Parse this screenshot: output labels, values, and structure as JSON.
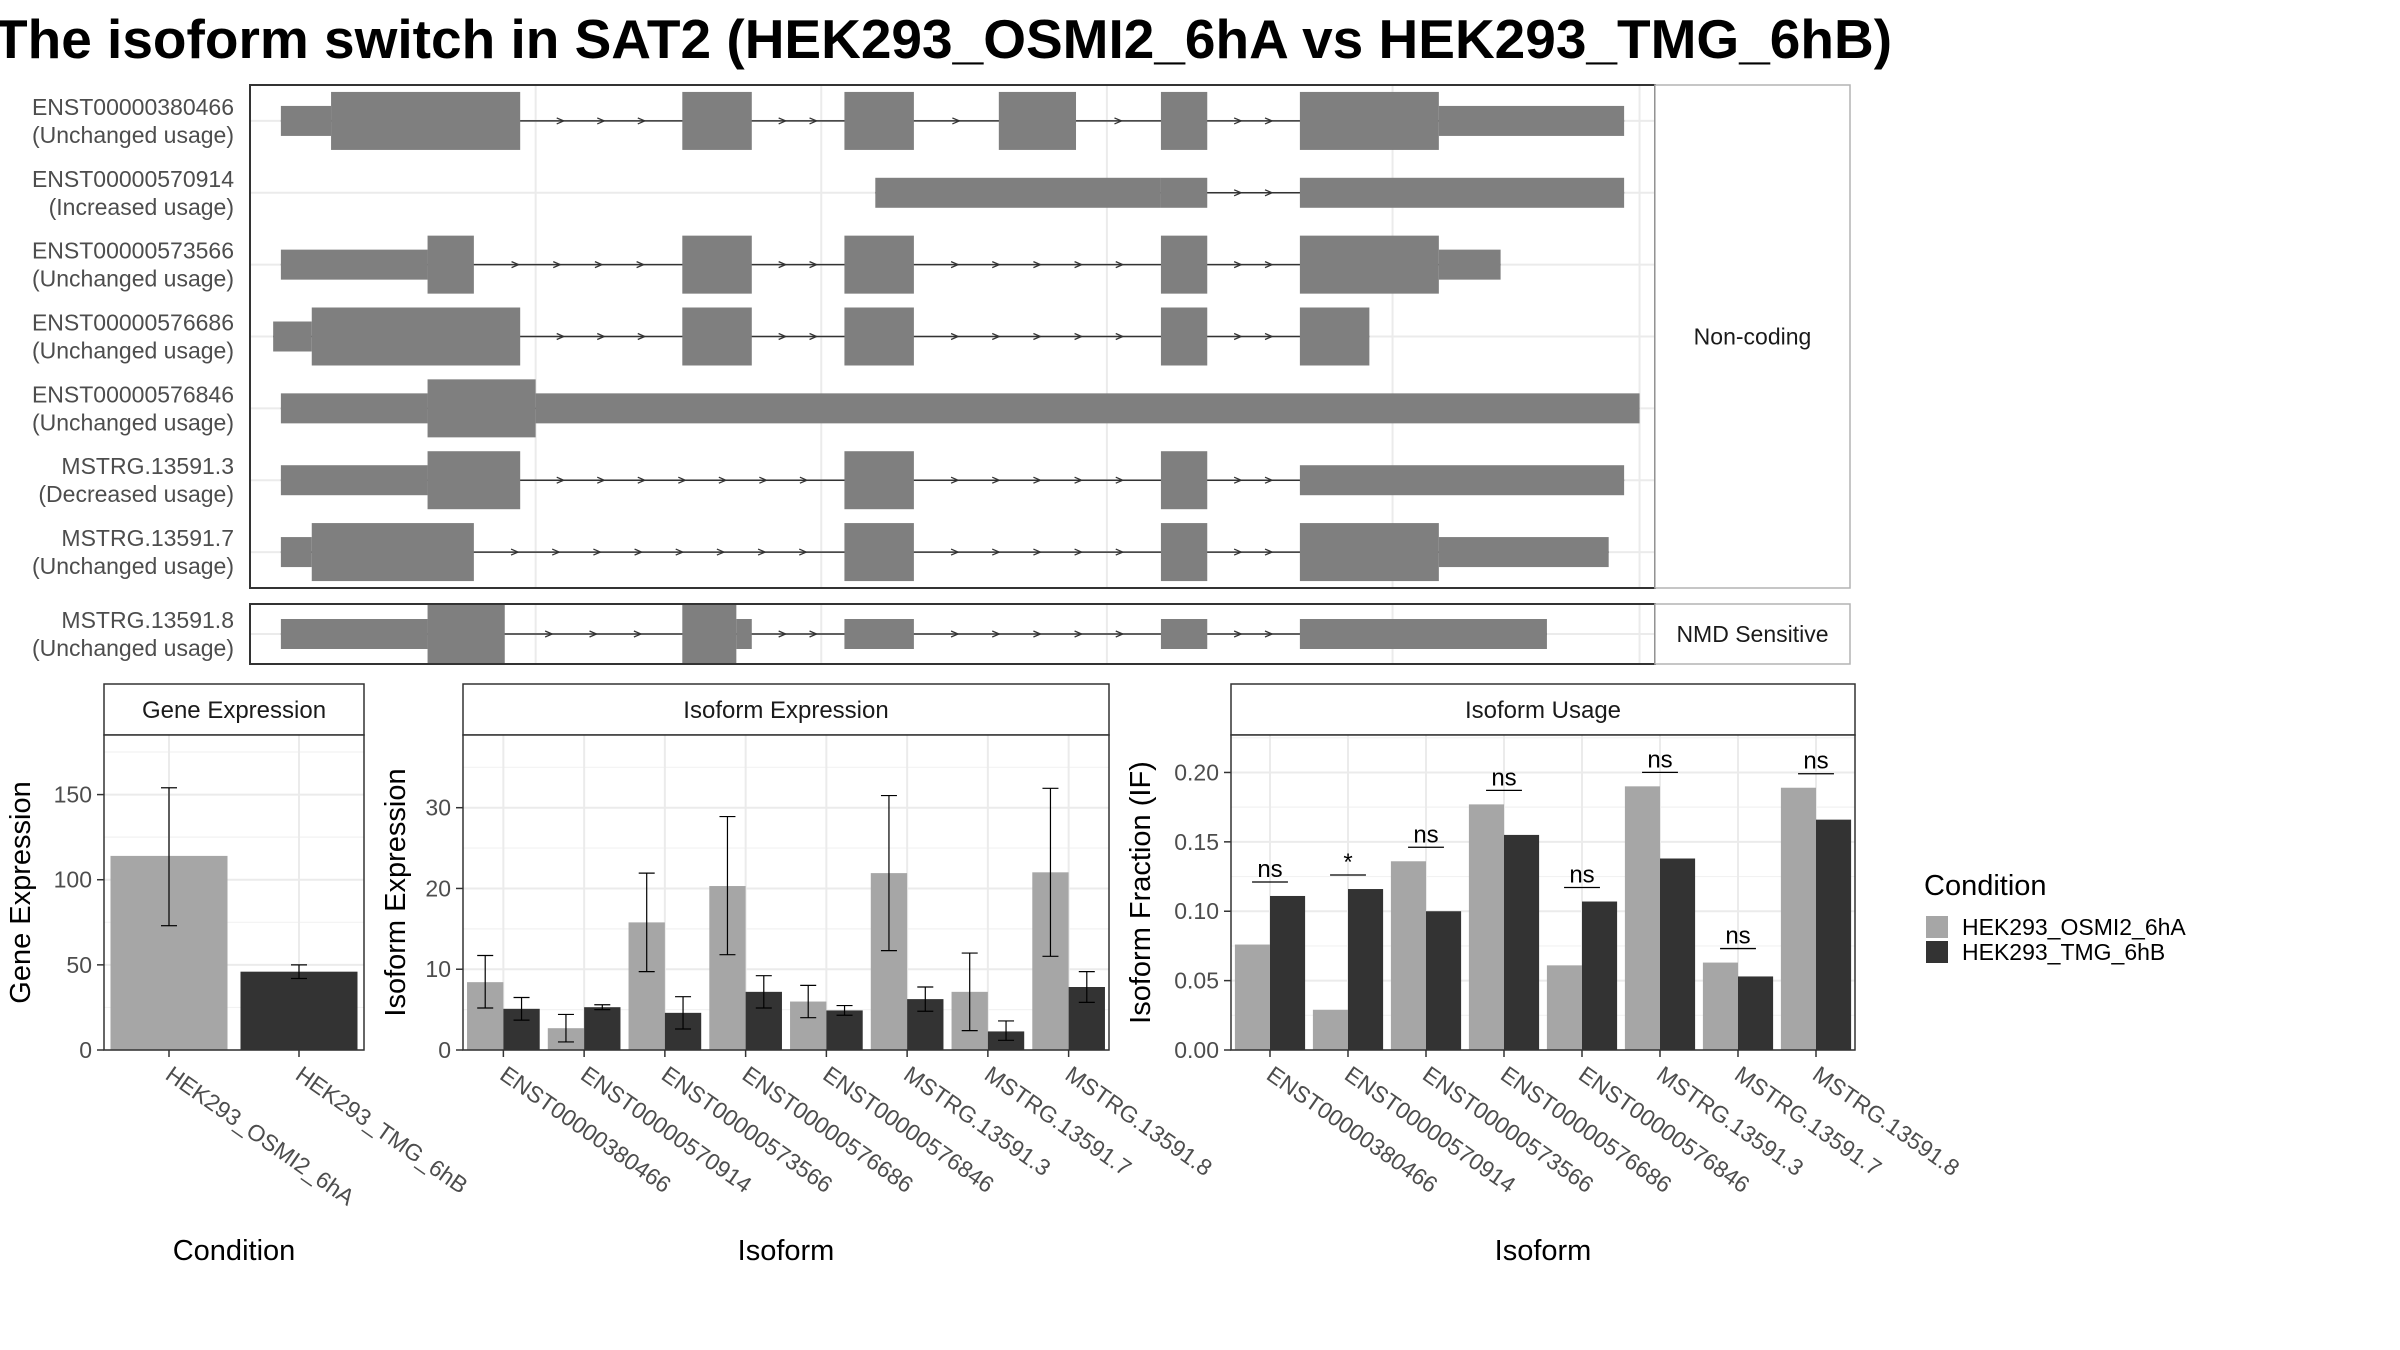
{
  "title": "The isoform switch in SAT2 (HEK293_OSMI2_6hA vs HEK293_TMG_6hB)",
  "colors": {
    "exon": "#7f7f7f",
    "intron": "#333333",
    "cond1": "#a6a6a6",
    "cond2": "#333333",
    "grid": "#ebebeb",
    "panel_border": "#333333",
    "strip_bg": "#ffffff",
    "axis_text": "#4d4d4d"
  },
  "chart_data": [
    {
      "type": "gene_structure",
      "facets": [
        {
          "label": "Non-coding",
          "transcripts": [
            {
              "name": "ENST00000380466",
              "status": "(Unchanged usage)",
              "exons": [
                [
                  4,
                  10.5,
                  "t"
                ],
                [
                  10.5,
                  35,
                  "c"
                ],
                [
                  56,
                  65,
                  "c"
                ],
                [
                  77,
                  86,
                  "c"
                ],
                [
                  97,
                  107,
                  "c"
                ],
                [
                  118,
                  124,
                  "c"
                ],
                [
                  136,
                  154,
                  "c"
                ],
                [
                  154,
                  178,
                  "t"
                ]
              ]
            },
            {
              "name": "ENST00000570914",
              "status": "(Increased usage)",
              "exons": [
                [
                  81,
                  118,
                  "t"
                ],
                [
                  118,
                  124,
                  "t"
                ],
                [
                  136,
                  178,
                  "t"
                ]
              ]
            },
            {
              "name": "ENST00000573566",
              "status": "(Unchanged usage)",
              "exons": [
                [
                  4,
                  23,
                  "t"
                ],
                [
                  23,
                  29,
                  "c"
                ],
                [
                  56,
                  65,
                  "c"
                ],
                [
                  77,
                  86,
                  "c"
                ],
                [
                  118,
                  124,
                  "c"
                ],
                [
                  136,
                  154,
                  "c"
                ],
                [
                  154,
                  162,
                  "t"
                ]
              ]
            },
            {
              "name": "ENST00000576686",
              "status": "(Unchanged usage)",
              "exons": [
                [
                  3,
                  8,
                  "t"
                ],
                [
                  8,
                  35,
                  "c"
                ],
                [
                  56,
                  65,
                  "c"
                ],
                [
                  77,
                  86,
                  "c"
                ],
                [
                  118,
                  124,
                  "c"
                ],
                [
                  136,
                  145,
                  "c"
                ]
              ]
            },
            {
              "name": "ENST00000576846",
              "status": "(Unchanged usage)",
              "exons": [
                [
                  4,
                  23,
                  "t"
                ],
                [
                  23,
                  37,
                  "c"
                ],
                [
                  37,
                  180,
                  "t"
                ]
              ]
            },
            {
              "name": "MSTRG.13591.3",
              "status": "(Decreased usage)",
              "exons": [
                [
                  4,
                  23,
                  "t"
                ],
                [
                  23,
                  35,
                  "c"
                ],
                [
                  77,
                  86,
                  "c"
                ],
                [
                  118,
                  124,
                  "c"
                ],
                [
                  136,
                  178,
                  "t"
                ]
              ]
            },
            {
              "name": "MSTRG.13591.7",
              "status": "(Unchanged usage)",
              "exons": [
                [
                  4,
                  8,
                  "t"
                ],
                [
                  8,
                  29,
                  "c"
                ],
                [
                  77,
                  86,
                  "c"
                ],
                [
                  118,
                  124,
                  "c"
                ],
                [
                  136,
                  154,
                  "c"
                ],
                [
                  154,
                  176,
                  "t"
                ]
              ]
            }
          ]
        },
        {
          "label": "NMD Sensitive",
          "transcripts": [
            {
              "name": "MSTRG.13591.8",
              "status": "(Unchanged usage)",
              "exons": [
                [
                  4,
                  23,
                  "t"
                ],
                [
                  23,
                  33,
                  "c"
                ],
                [
                  56,
                  63,
                  "c"
                ],
                [
                  63,
                  65,
                  "t"
                ],
                [
                  77,
                  86,
                  "t"
                ],
                [
                  118,
                  124,
                  "t"
                ],
                [
                  136,
                  168,
                  "t"
                ]
              ]
            }
          ]
        }
      ]
    },
    {
      "type": "bar",
      "title": "Gene Expression",
      "xlabel": "Condition",
      "ylabel": "Gene Expression",
      "ylim": [
        0,
        185
      ],
      "yticks": [
        0,
        50,
        100,
        150
      ],
      "categories": [
        "HEK293_OSMI2_6hA",
        "HEK293_TMG_6hB"
      ],
      "values": [
        114,
        46
      ],
      "err_low": [
        73,
        42
      ],
      "err_high": [
        154,
        50
      ]
    },
    {
      "type": "bar",
      "title": "Isoform Expression",
      "xlabel": "Isoform",
      "ylabel": "Isoform Expression",
      "ylim": [
        0,
        39
      ],
      "yticks": [
        0,
        10,
        20,
        30
      ],
      "categories": [
        "ENST00000380466",
        "ENST00000570914",
        "ENST00000573566",
        "ENST00000576686",
        "ENST00000576846",
        "MSTRG.13591.3",
        "MSTRG.13591.7",
        "MSTRG.13591.8"
      ],
      "series": [
        {
          "name": "HEK293_OSMI2_6hA",
          "values": [
            8.4,
            2.7,
            15.8,
            20.3,
            6.0,
            21.9,
            7.2,
            22.0
          ],
          "err_low": [
            5.2,
            1.0,
            9.7,
            11.8,
            4.0,
            12.3,
            2.4,
            11.6
          ],
          "err_high": [
            11.7,
            4.4,
            21.9,
            28.9,
            8.0,
            31.5,
            12.0,
            32.4
          ]
        },
        {
          "name": "HEK293_TMG_6hB",
          "values": [
            5.1,
            5.3,
            4.6,
            7.2,
            4.9,
            6.3,
            2.3,
            7.8
          ],
          "err_low": [
            3.7,
            5.0,
            2.6,
            5.2,
            4.3,
            4.8,
            1.2,
            5.9
          ],
          "err_high": [
            6.5,
            5.6,
            6.6,
            9.2,
            5.5,
            7.8,
            3.6,
            9.7
          ]
        }
      ]
    },
    {
      "type": "bar",
      "title": "Isoform Usage",
      "xlabel": "Isoform",
      "ylabel": "Isoform Fraction (IF)",
      "ylim": [
        0,
        0.227
      ],
      "yticks": [
        "0.00",
        "0.05",
        "0.10",
        "0.15",
        "0.20"
      ],
      "categories": [
        "ENST00000380466",
        "ENST00000570914",
        "ENST00000573566",
        "ENST00000576686",
        "ENST00000576846",
        "MSTRG.13591.3",
        "MSTRG.13591.7",
        "MSTRG.13591.8"
      ],
      "series": [
        {
          "name": "HEK293_OSMI2_6hA",
          "values": [
            0.076,
            0.029,
            0.136,
            0.177,
            0.061,
            0.19,
            0.063,
            0.189
          ]
        },
        {
          "name": "HEK293_TMG_6hB",
          "values": [
            0.111,
            0.116,
            0.1,
            0.155,
            0.107,
            0.138,
            0.053,
            0.166
          ]
        }
      ],
      "significance": [
        "ns",
        "*",
        "ns",
        "ns",
        "ns",
        "ns",
        "ns",
        "ns"
      ]
    }
  ],
  "legend": {
    "title": "Condition",
    "items": [
      "HEK293_OSMI2_6hA",
      "HEK293_TMG_6hB"
    ]
  }
}
